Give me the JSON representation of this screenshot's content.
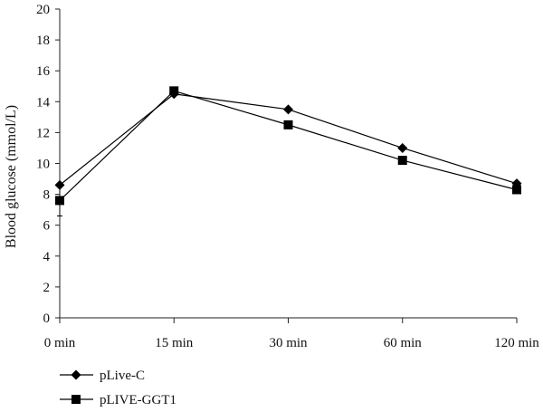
{
  "chart_data": {
    "type": "line",
    "categories": [
      "0 min",
      "15 min",
      "30 min",
      "60 min",
      "120 min"
    ],
    "series": [
      {
        "name": "pLive-C",
        "marker": "diamond",
        "values": [
          8.6,
          14.5,
          13.5,
          11.0,
          8.7
        ]
      },
      {
        "name": "pLIVE-GGT1",
        "marker": "square",
        "values": [
          7.6,
          14.7,
          12.5,
          10.2,
          8.3
        ],
        "error_first": 1.0
      }
    ],
    "title": "",
    "xlabel": "",
    "ylabel": "Blood glucose (mmol/L)",
    "ylim": [
      0,
      20
    ],
    "yticks": [
      0,
      2,
      4,
      6,
      8,
      10,
      12,
      14,
      16,
      18,
      20
    ],
    "grid": false,
    "legend_position": "bottom-left",
    "colors": {
      "line": "#000000",
      "marker": "#000000"
    }
  }
}
